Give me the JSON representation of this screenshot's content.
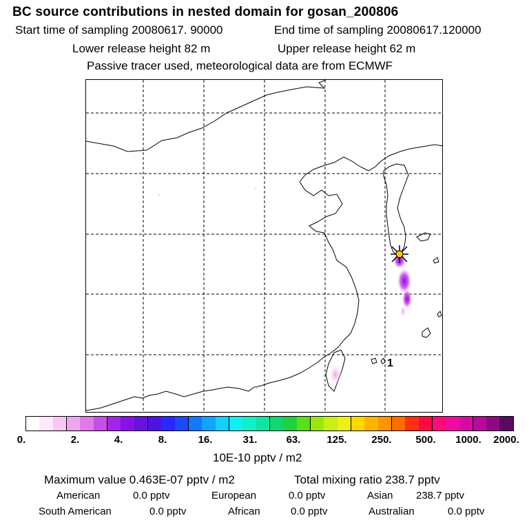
{
  "header": {
    "title": "BC  source contributions in nested domain for gosan_200806",
    "start_sampling": "Start time of sampling 20080617. 90000",
    "end_sampling": "End time of sampling 20080617.120000",
    "lower_release": "Lower release height   82 m",
    "upper_release": "Upper release height   62 m",
    "tracer_note": "Passive tracer used, meteorological data are from ECMWF"
  },
  "map": {
    "station_marker_label": "1",
    "release_site_name": "gosan"
  },
  "colorbar": {
    "tick_labels": [
      "0.",
      "2.",
      "4.",
      "8.",
      "16.",
      "31.",
      "63.",
      "125.",
      "250.",
      "500.",
      "1000.",
      "2000."
    ],
    "colors": [
      "#ffffff",
      "#fde8fc",
      "#f8c8f4",
      "#f0a6ee",
      "#e07ae6",
      "#c84ee8",
      "#a424ea",
      "#8a10e8",
      "#6810e0",
      "#4c12e6",
      "#2828ff",
      "#1c48ff",
      "#1478ff",
      "#10a4ff",
      "#10d0ff",
      "#10f0f0",
      "#10f0c8",
      "#10e4a0",
      "#10d870",
      "#20d040",
      "#58e018",
      "#98e810",
      "#c8f010",
      "#f0f010",
      "#ffd800",
      "#ffb400",
      "#ff9400",
      "#ff6c00",
      "#ff3010",
      "#ff0a40",
      "#ff0a78",
      "#f00aa0",
      "#d80aa4",
      "#b80a98",
      "#8e0a84",
      "#5a0a60"
    ],
    "units": "10E-10 pptv / m2"
  },
  "summary": {
    "max_value": "Maximum value  0.463E-07 pptv / m2",
    "total_mixing_ratio": "Total mixing ratio     238.7 pptv",
    "regions": {
      "american_label": "American",
      "american_value": "0.0 pptv",
      "european_label": "European",
      "european_value": "0.0 pptv",
      "asian_label": "Asian",
      "asian_value": "238.7 pptv",
      "south_american_label": "South American",
      "south_american_value": "0.0 pptv",
      "african_label": "African",
      "african_value": "0.0 pptv",
      "australian_label": "Australian",
      "australian_value": "0.0 pptv"
    }
  }
}
